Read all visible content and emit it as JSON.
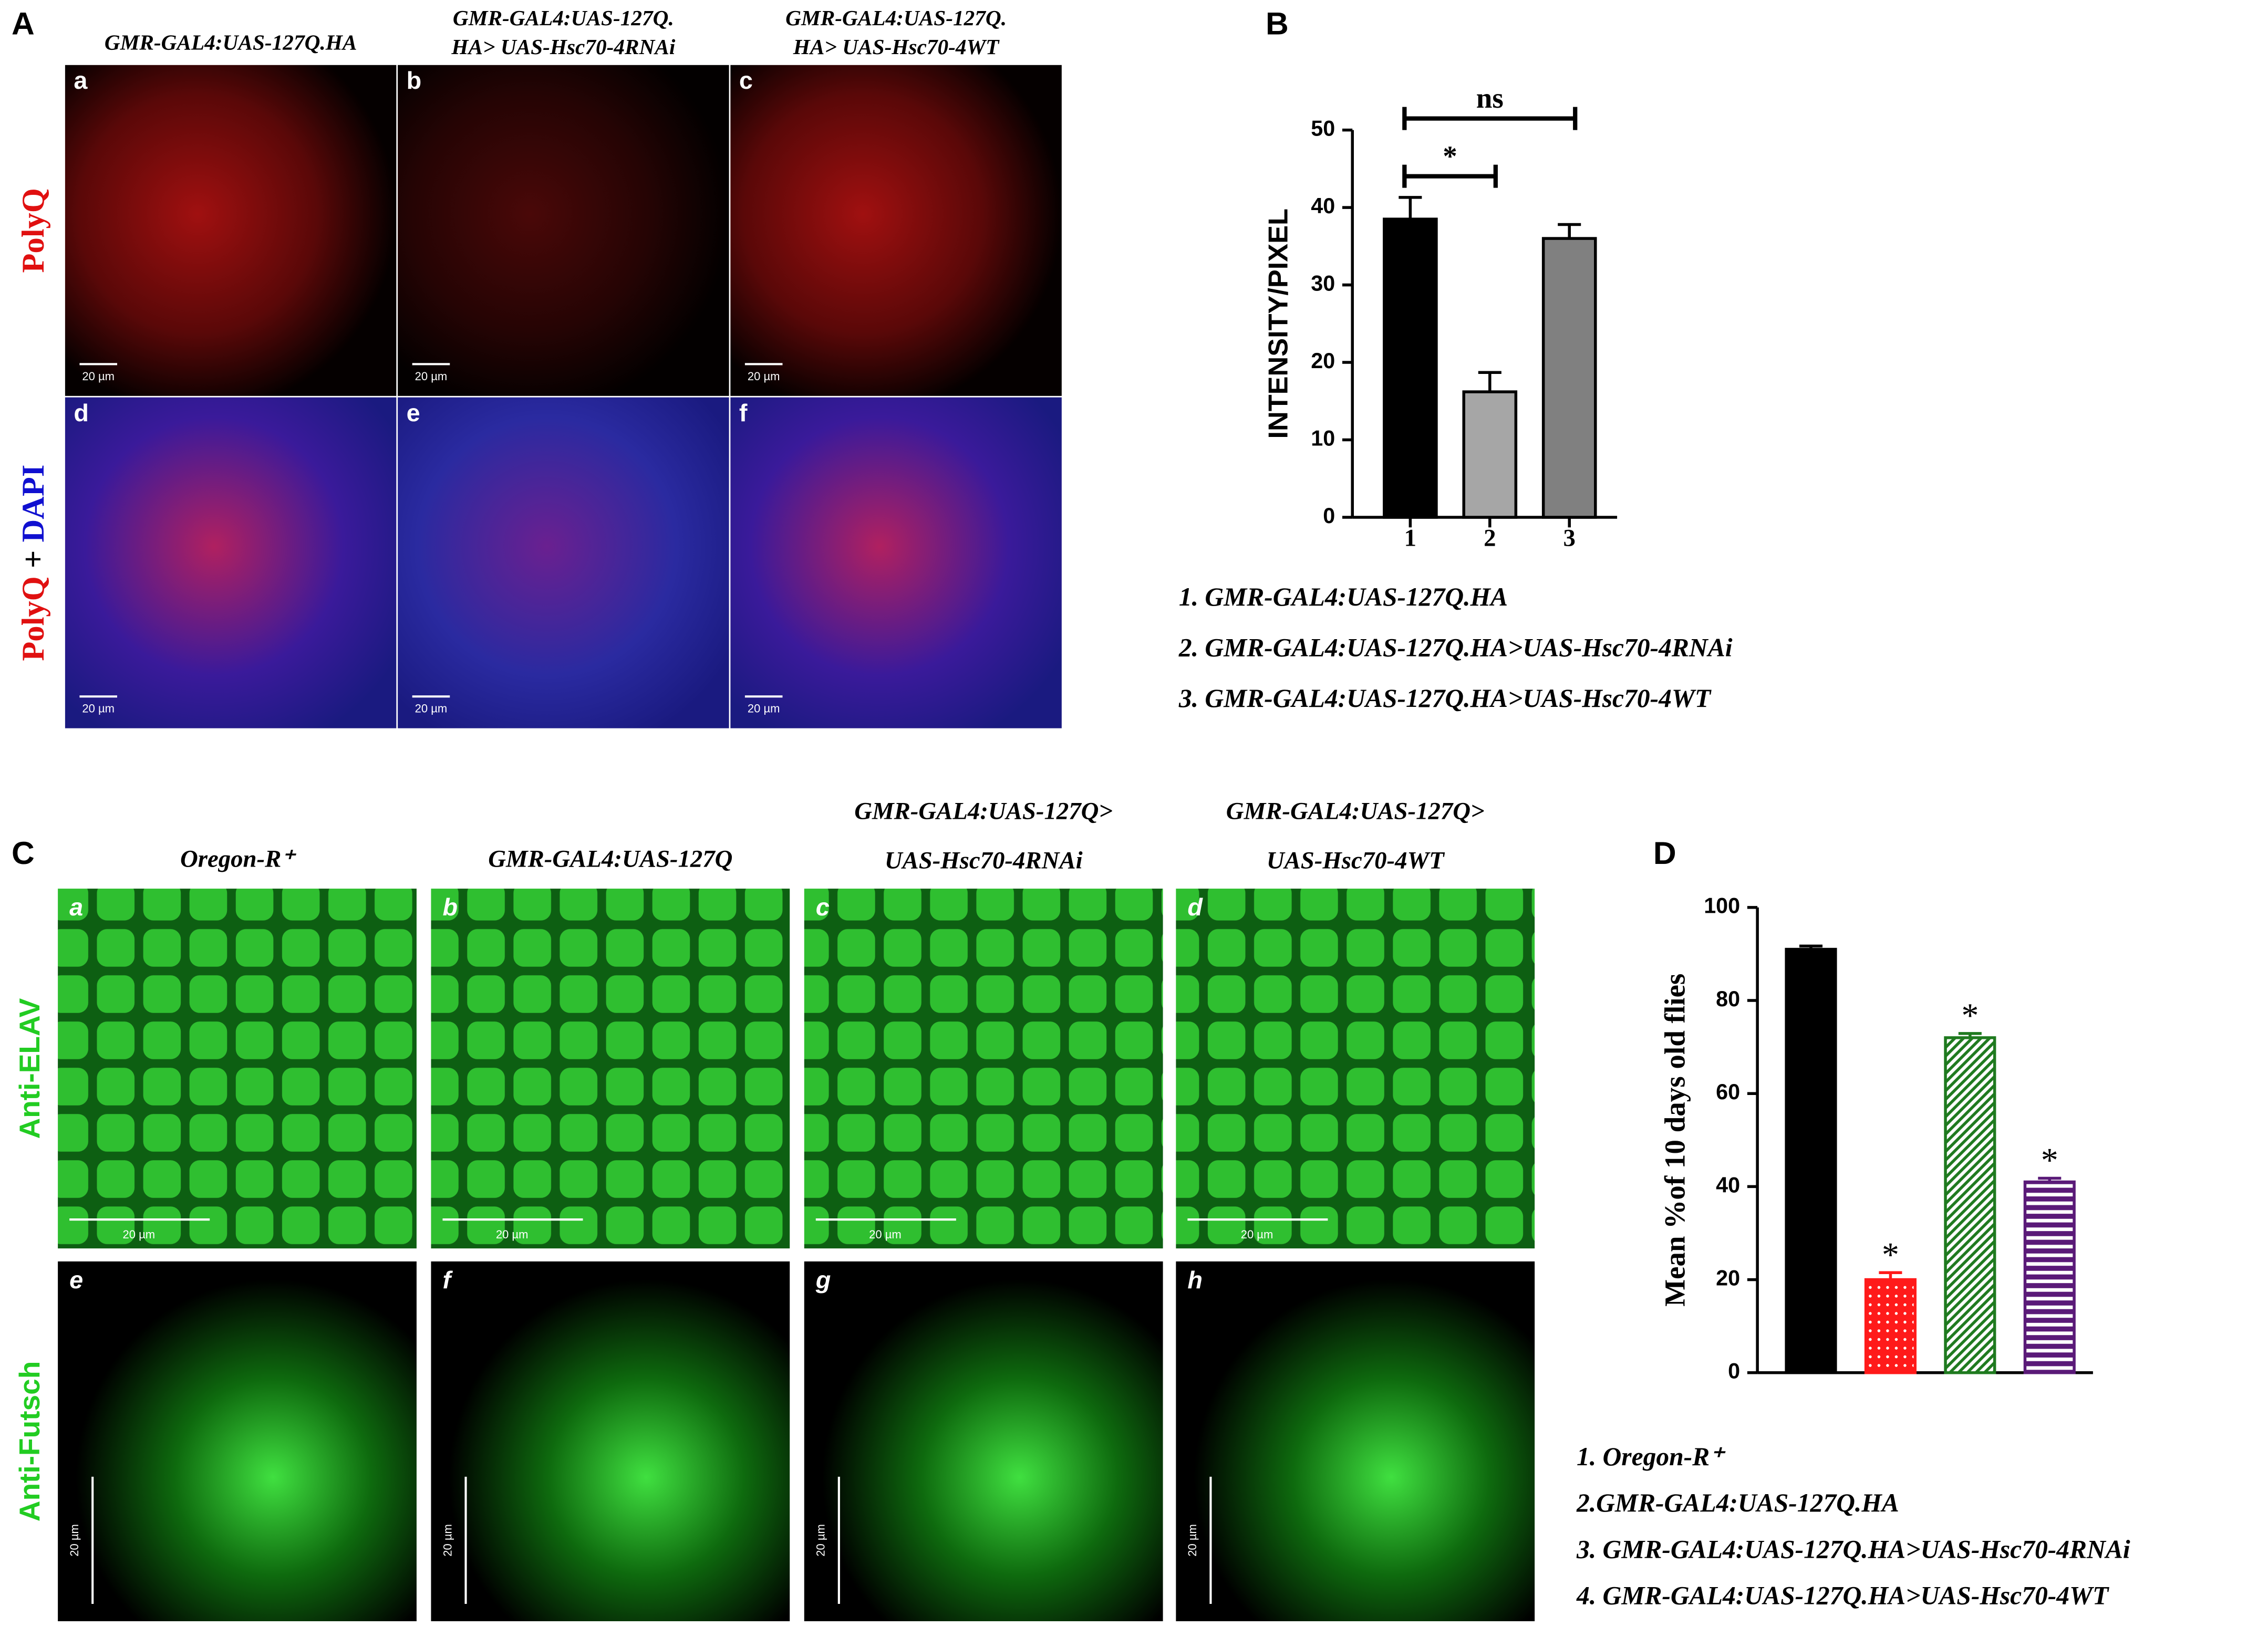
{
  "figure": {
    "A": {
      "label": "A",
      "headings": [
        [
          "GMR-GAL4:UAS-127Q.HA"
        ],
        [
          "GMR-GAL4:UAS-127Q.",
          "HA> UAS-Hsc70-4RNAi"
        ],
        [
          "GMR-GAL4:UAS-127Q.",
          "HA> UAS-Hsc70-4WT"
        ]
      ],
      "row_labels": [
        [
          "PolyQ"
        ],
        [
          "PolyQ",
          "+",
          "DAPI"
        ]
      ],
      "panels": [
        "a",
        "b",
        "c",
        "d",
        "e",
        "f"
      ],
      "scale_bar": "20 µm"
    },
    "C": {
      "label": "C",
      "headings": [
        [
          "Oregon-R⁺"
        ],
        [
          "GMR-GAL4:UAS-127Q"
        ],
        [
          "GMR-GAL4:UAS-127Q>",
          "UAS-Hsc70-4RNAi"
        ],
        [
          "GMR-GAL4:UAS-127Q>",
          "UAS-Hsc70-4WT"
        ]
      ],
      "row_labels": [
        "Anti-ELAV",
        "Anti-Futsch"
      ],
      "panels": [
        "a",
        "b",
        "c",
        "d",
        "e",
        "f",
        "g",
        "h"
      ],
      "scale_bar": "20 µm"
    }
  },
  "chart_data": [
    {
      "type": "bar",
      "label": "B",
      "y_label": "INTENSITY/PIXEL",
      "categories": [
        "1",
        "2",
        "3"
      ],
      "values": [
        38.5,
        16.2,
        36
      ],
      "errors": [
        2.8,
        2.5,
        1.8
      ],
      "colors": [
        "#000000",
        "#a6a6a6",
        "#808080"
      ],
      "patterns": [
        "solid",
        "solid",
        "solid"
      ],
      "ylim": [
        0,
        50
      ],
      "yticks": [
        0,
        10,
        20,
        30,
        40,
        50
      ],
      "annotations": [
        "*",
        "ns"
      ],
      "legend": [
        "1. GMR-GAL4:UAS-127Q.HA",
        "2. GMR-GAL4:UAS-127Q.HA>UAS-Hsc70-4RNAi",
        "3. GMR-GAL4:UAS-127Q.HA>UAS-Hsc70-4WT"
      ]
    },
    {
      "type": "bar",
      "label": "D",
      "y_label": "Mean %of 10 days old flies",
      "values": [
        91,
        20,
        72,
        41
      ],
      "errors": [
        0.7,
        1.5,
        0.9,
        0.8
      ],
      "colors": [
        "#000000",
        "#ff1a1a",
        "#1f7a1f",
        "#5a1a78"
      ],
      "patterns": [
        "solid",
        "dots",
        "diagonal",
        "horizontal"
      ],
      "ylim": [
        0,
        100
      ],
      "yticks": [
        0,
        20,
        40,
        60,
        80,
        100
      ],
      "annotations": [
        null,
        "*",
        "*",
        "*"
      ],
      "legend": [
        "1. Oregon-R⁺",
        "2.GMR-GAL4:UAS-127Q.HA",
        "3. GMR-GAL4:UAS-127Q.HA>UAS-Hsc70-4RNAi",
        "4. GMR-GAL4:UAS-127Q.HA>UAS-Hsc70-4WT"
      ]
    }
  ]
}
